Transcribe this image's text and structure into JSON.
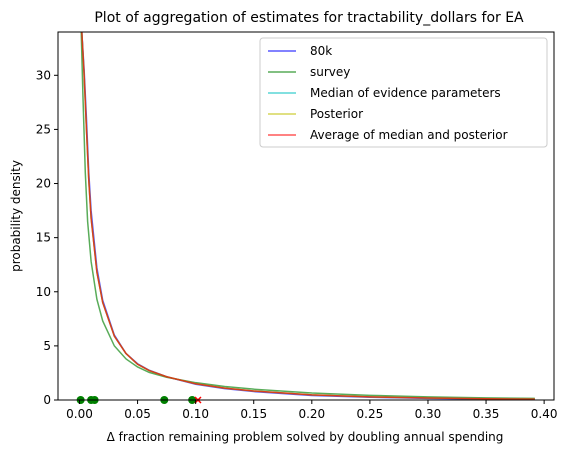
{
  "chart_data": {
    "type": "line",
    "title": "Plot of aggregation of estimates for tractability_dollars for EA",
    "xlabel": "Δ fraction remaining problem solved by doubling annual spending",
    "ylabel": "probability density",
    "xlim": [
      -0.0185,
      0.4085
    ],
    "ylim": [
      0,
      34
    ],
    "xticks": [
      "0.00",
      "0.05",
      "0.10",
      "0.15",
      "0.20",
      "0.25",
      "0.30",
      "0.35",
      "0.40"
    ],
    "xtick_values": [
      0,
      0.05,
      0.1,
      0.15,
      0.2,
      0.25,
      0.3,
      0.35,
      0.4
    ],
    "yticks": [
      "0",
      "5",
      "10",
      "15",
      "20",
      "25",
      "30"
    ],
    "ytick_values": [
      0,
      5,
      10,
      15,
      20,
      25,
      30
    ],
    "legend_position": "upper-right",
    "grid": false,
    "series": [
      {
        "name": "80k",
        "color": "#0000ff",
        "x": [
          0.002,
          0.004,
          0.006,
          0.008,
          0.01,
          0.015,
          0.02,
          0.03,
          0.04,
          0.05,
          0.06,
          0.075,
          0.1,
          0.125,
          0.15,
          0.2,
          0.25,
          0.3,
          0.35,
          0.392
        ],
        "y": [
          34,
          30.5,
          26,
          21,
          17.5,
          12.2,
          9.2,
          6.0,
          4.3,
          3.35,
          2.75,
          2.15,
          1.45,
          1.05,
          0.78,
          0.42,
          0.25,
          0.15,
          0.09,
          0.06
        ]
      },
      {
        "name": "survey",
        "color": "#008000",
        "x": [
          0.0015,
          0.003,
          0.005,
          0.007,
          0.01,
          0.015,
          0.02,
          0.03,
          0.04,
          0.05,
          0.06,
          0.075,
          0.1,
          0.125,
          0.15,
          0.2,
          0.25,
          0.3,
          0.35,
          0.392
        ],
        "y": [
          34,
          28,
          21,
          16.5,
          12.8,
          9.3,
          7.3,
          5.0,
          3.8,
          3.05,
          2.55,
          2.1,
          1.6,
          1.25,
          1.0,
          0.65,
          0.43,
          0.29,
          0.2,
          0.15
        ]
      },
      {
        "name": "Median of evidence parameters",
        "color": "#00bfbf",
        "x": [
          0.002,
          0.004,
          0.006,
          0.008,
          0.01,
          0.015,
          0.02,
          0.03,
          0.04,
          0.05,
          0.06,
          0.075,
          0.1,
          0.125,
          0.15,
          0.2,
          0.25,
          0.3,
          0.35,
          0.392
        ],
        "y": [
          34,
          30,
          25,
          20.3,
          16.8,
          11.8,
          9.0,
          5.9,
          4.3,
          3.3,
          2.72,
          2.15,
          1.5,
          1.1,
          0.83,
          0.47,
          0.29,
          0.18,
          0.11,
          0.08
        ]
      },
      {
        "name": "Posterior",
        "color": "#bfbf00",
        "x": [
          0.002,
          0.004,
          0.006,
          0.008,
          0.01,
          0.015,
          0.02,
          0.03,
          0.04,
          0.05,
          0.06,
          0.075,
          0.1,
          0.125,
          0.15,
          0.2,
          0.25,
          0.3,
          0.35,
          0.392
        ],
        "y": [
          34,
          30,
          25,
          20.3,
          16.8,
          11.8,
          9.0,
          5.9,
          4.3,
          3.3,
          2.72,
          2.15,
          1.5,
          1.1,
          0.83,
          0.47,
          0.29,
          0.18,
          0.11,
          0.08
        ]
      },
      {
        "name": "Average of median and posterior",
        "color": "#ff0000",
        "x": [
          0.002,
          0.004,
          0.006,
          0.008,
          0.01,
          0.015,
          0.02,
          0.03,
          0.04,
          0.05,
          0.06,
          0.075,
          0.1,
          0.125,
          0.15,
          0.2,
          0.25,
          0.3,
          0.35,
          0.392
        ],
        "y": [
          34,
          30,
          25,
          20.3,
          16.8,
          11.8,
          9.0,
          5.9,
          4.3,
          3.3,
          2.72,
          2.15,
          1.5,
          1.1,
          0.83,
          0.47,
          0.29,
          0.18,
          0.11,
          0.08
        ]
      }
    ],
    "markers": {
      "type": "scatter",
      "color": "#008000",
      "x": [
        0.001,
        0.01,
        0.013,
        0.073,
        0.097
      ],
      "y": [
        0,
        0,
        0,
        0,
        0
      ]
    },
    "x_markers": {
      "color": "#ff0000",
      "x": [
        0.102
      ],
      "y": [
        0
      ]
    }
  }
}
